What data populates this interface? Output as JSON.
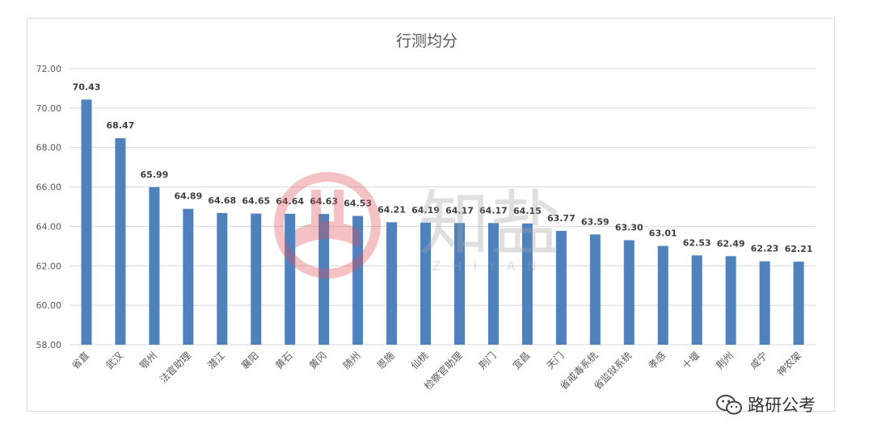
{
  "chart_data": {
    "type": "bar",
    "title": "行测均分",
    "xlabel": "",
    "ylabel": "",
    "ylim": [
      58,
      72
    ],
    "yticks": [
      "58.00",
      "60.00",
      "62.00",
      "64.00",
      "66.00",
      "68.00",
      "70.00",
      "72.00"
    ],
    "grid": true,
    "legend": "none",
    "bar_color": "#4f81bd",
    "categories": [
      "省直",
      "武汉",
      "鄂州",
      "法官助理",
      "潜江",
      "襄阳",
      "黄石",
      "黄冈",
      "随州",
      "恩施",
      "仙桃",
      "检察官助理",
      "荆门",
      "宜昌",
      "天门",
      "省戒毒系统",
      "省监狱系统",
      "孝感",
      "十堰",
      "荆州",
      "咸宁",
      "神农架"
    ],
    "values": [
      70.43,
      68.47,
      65.99,
      64.89,
      64.68,
      64.65,
      64.64,
      64.63,
      64.53,
      64.21,
      64.19,
      64.17,
      64.17,
      64.15,
      63.77,
      63.59,
      63.3,
      63.01,
      62.53,
      62.49,
      62.23,
      62.21
    ],
    "data_labels": [
      "70.43",
      "68.47",
      "65.99",
      "64.89",
      "64.68",
      "64.65",
      "64.64",
      "64.63",
      "64.53",
      "64.21",
      "64.19",
      "64.17",
      "64.17",
      "64.15",
      "63.77",
      "63.59",
      "63.30",
      "63.01",
      "62.53",
      "62.49",
      "62.23",
      "62.21"
    ]
  },
  "watermark": {
    "text": "知盐",
    "subtext": "ZHIYAN"
  },
  "brand": {
    "name": "路研公考",
    "icon": "wechat-icon"
  }
}
